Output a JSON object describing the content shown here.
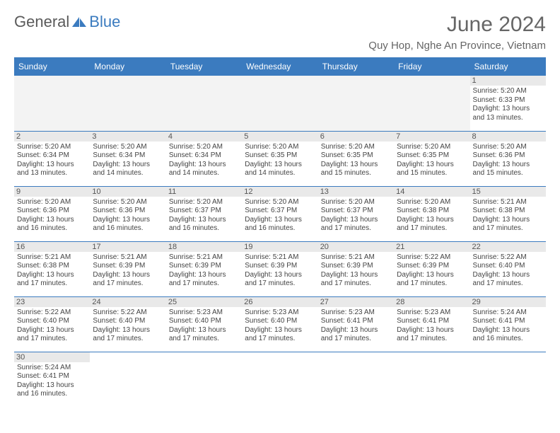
{
  "logo": {
    "text1": "General",
    "text2": "Blue"
  },
  "title": "June 2024",
  "location": "Quy Hop, Nghe An Province, Vietnam",
  "colors": {
    "header_bg": "#3b7bbf",
    "header_text": "#ffffff",
    "daynum_bg": "#e9e9e9",
    "border": "#3b7bbf",
    "logo_gray": "#5a5a5a",
    "logo_blue": "#3b7bbf"
  },
  "weekdays": [
    "Sunday",
    "Monday",
    "Tuesday",
    "Wednesday",
    "Thursday",
    "Friday",
    "Saturday"
  ],
  "weeks": [
    [
      null,
      null,
      null,
      null,
      null,
      null,
      {
        "n": "1",
        "sr": "5:20 AM",
        "ss": "6:33 PM",
        "dl": "13 hours and 13 minutes."
      }
    ],
    [
      {
        "n": "2",
        "sr": "5:20 AM",
        "ss": "6:34 PM",
        "dl": "13 hours and 13 minutes."
      },
      {
        "n": "3",
        "sr": "5:20 AM",
        "ss": "6:34 PM",
        "dl": "13 hours and 14 minutes."
      },
      {
        "n": "4",
        "sr": "5:20 AM",
        "ss": "6:34 PM",
        "dl": "13 hours and 14 minutes."
      },
      {
        "n": "5",
        "sr": "5:20 AM",
        "ss": "6:35 PM",
        "dl": "13 hours and 14 minutes."
      },
      {
        "n": "6",
        "sr": "5:20 AM",
        "ss": "6:35 PM",
        "dl": "13 hours and 15 minutes."
      },
      {
        "n": "7",
        "sr": "5:20 AM",
        "ss": "6:35 PM",
        "dl": "13 hours and 15 minutes."
      },
      {
        "n": "8",
        "sr": "5:20 AM",
        "ss": "6:36 PM",
        "dl": "13 hours and 15 minutes."
      }
    ],
    [
      {
        "n": "9",
        "sr": "5:20 AM",
        "ss": "6:36 PM",
        "dl": "13 hours and 16 minutes."
      },
      {
        "n": "10",
        "sr": "5:20 AM",
        "ss": "6:36 PM",
        "dl": "13 hours and 16 minutes."
      },
      {
        "n": "11",
        "sr": "5:20 AM",
        "ss": "6:37 PM",
        "dl": "13 hours and 16 minutes."
      },
      {
        "n": "12",
        "sr": "5:20 AM",
        "ss": "6:37 PM",
        "dl": "13 hours and 16 minutes."
      },
      {
        "n": "13",
        "sr": "5:20 AM",
        "ss": "6:37 PM",
        "dl": "13 hours and 17 minutes."
      },
      {
        "n": "14",
        "sr": "5:20 AM",
        "ss": "6:38 PM",
        "dl": "13 hours and 17 minutes."
      },
      {
        "n": "15",
        "sr": "5:21 AM",
        "ss": "6:38 PM",
        "dl": "13 hours and 17 minutes."
      }
    ],
    [
      {
        "n": "16",
        "sr": "5:21 AM",
        "ss": "6:38 PM",
        "dl": "13 hours and 17 minutes."
      },
      {
        "n": "17",
        "sr": "5:21 AM",
        "ss": "6:39 PM",
        "dl": "13 hours and 17 minutes."
      },
      {
        "n": "18",
        "sr": "5:21 AM",
        "ss": "6:39 PM",
        "dl": "13 hours and 17 minutes."
      },
      {
        "n": "19",
        "sr": "5:21 AM",
        "ss": "6:39 PM",
        "dl": "13 hours and 17 minutes."
      },
      {
        "n": "20",
        "sr": "5:21 AM",
        "ss": "6:39 PM",
        "dl": "13 hours and 17 minutes."
      },
      {
        "n": "21",
        "sr": "5:22 AM",
        "ss": "6:39 PM",
        "dl": "13 hours and 17 minutes."
      },
      {
        "n": "22",
        "sr": "5:22 AM",
        "ss": "6:40 PM",
        "dl": "13 hours and 17 minutes."
      }
    ],
    [
      {
        "n": "23",
        "sr": "5:22 AM",
        "ss": "6:40 PM",
        "dl": "13 hours and 17 minutes."
      },
      {
        "n": "24",
        "sr": "5:22 AM",
        "ss": "6:40 PM",
        "dl": "13 hours and 17 minutes."
      },
      {
        "n": "25",
        "sr": "5:23 AM",
        "ss": "6:40 PM",
        "dl": "13 hours and 17 minutes."
      },
      {
        "n": "26",
        "sr": "5:23 AM",
        "ss": "6:40 PM",
        "dl": "13 hours and 17 minutes."
      },
      {
        "n": "27",
        "sr": "5:23 AM",
        "ss": "6:41 PM",
        "dl": "13 hours and 17 minutes."
      },
      {
        "n": "28",
        "sr": "5:23 AM",
        "ss": "6:41 PM",
        "dl": "13 hours and 17 minutes."
      },
      {
        "n": "29",
        "sr": "5:24 AM",
        "ss": "6:41 PM",
        "dl": "13 hours and 16 minutes."
      }
    ],
    [
      {
        "n": "30",
        "sr": "5:24 AM",
        "ss": "6:41 PM",
        "dl": "13 hours and 16 minutes."
      },
      null,
      null,
      null,
      null,
      null,
      null
    ]
  ],
  "labels": {
    "sunrise": "Sunrise: ",
    "sunset": "Sunset: ",
    "daylight": "Daylight: "
  }
}
